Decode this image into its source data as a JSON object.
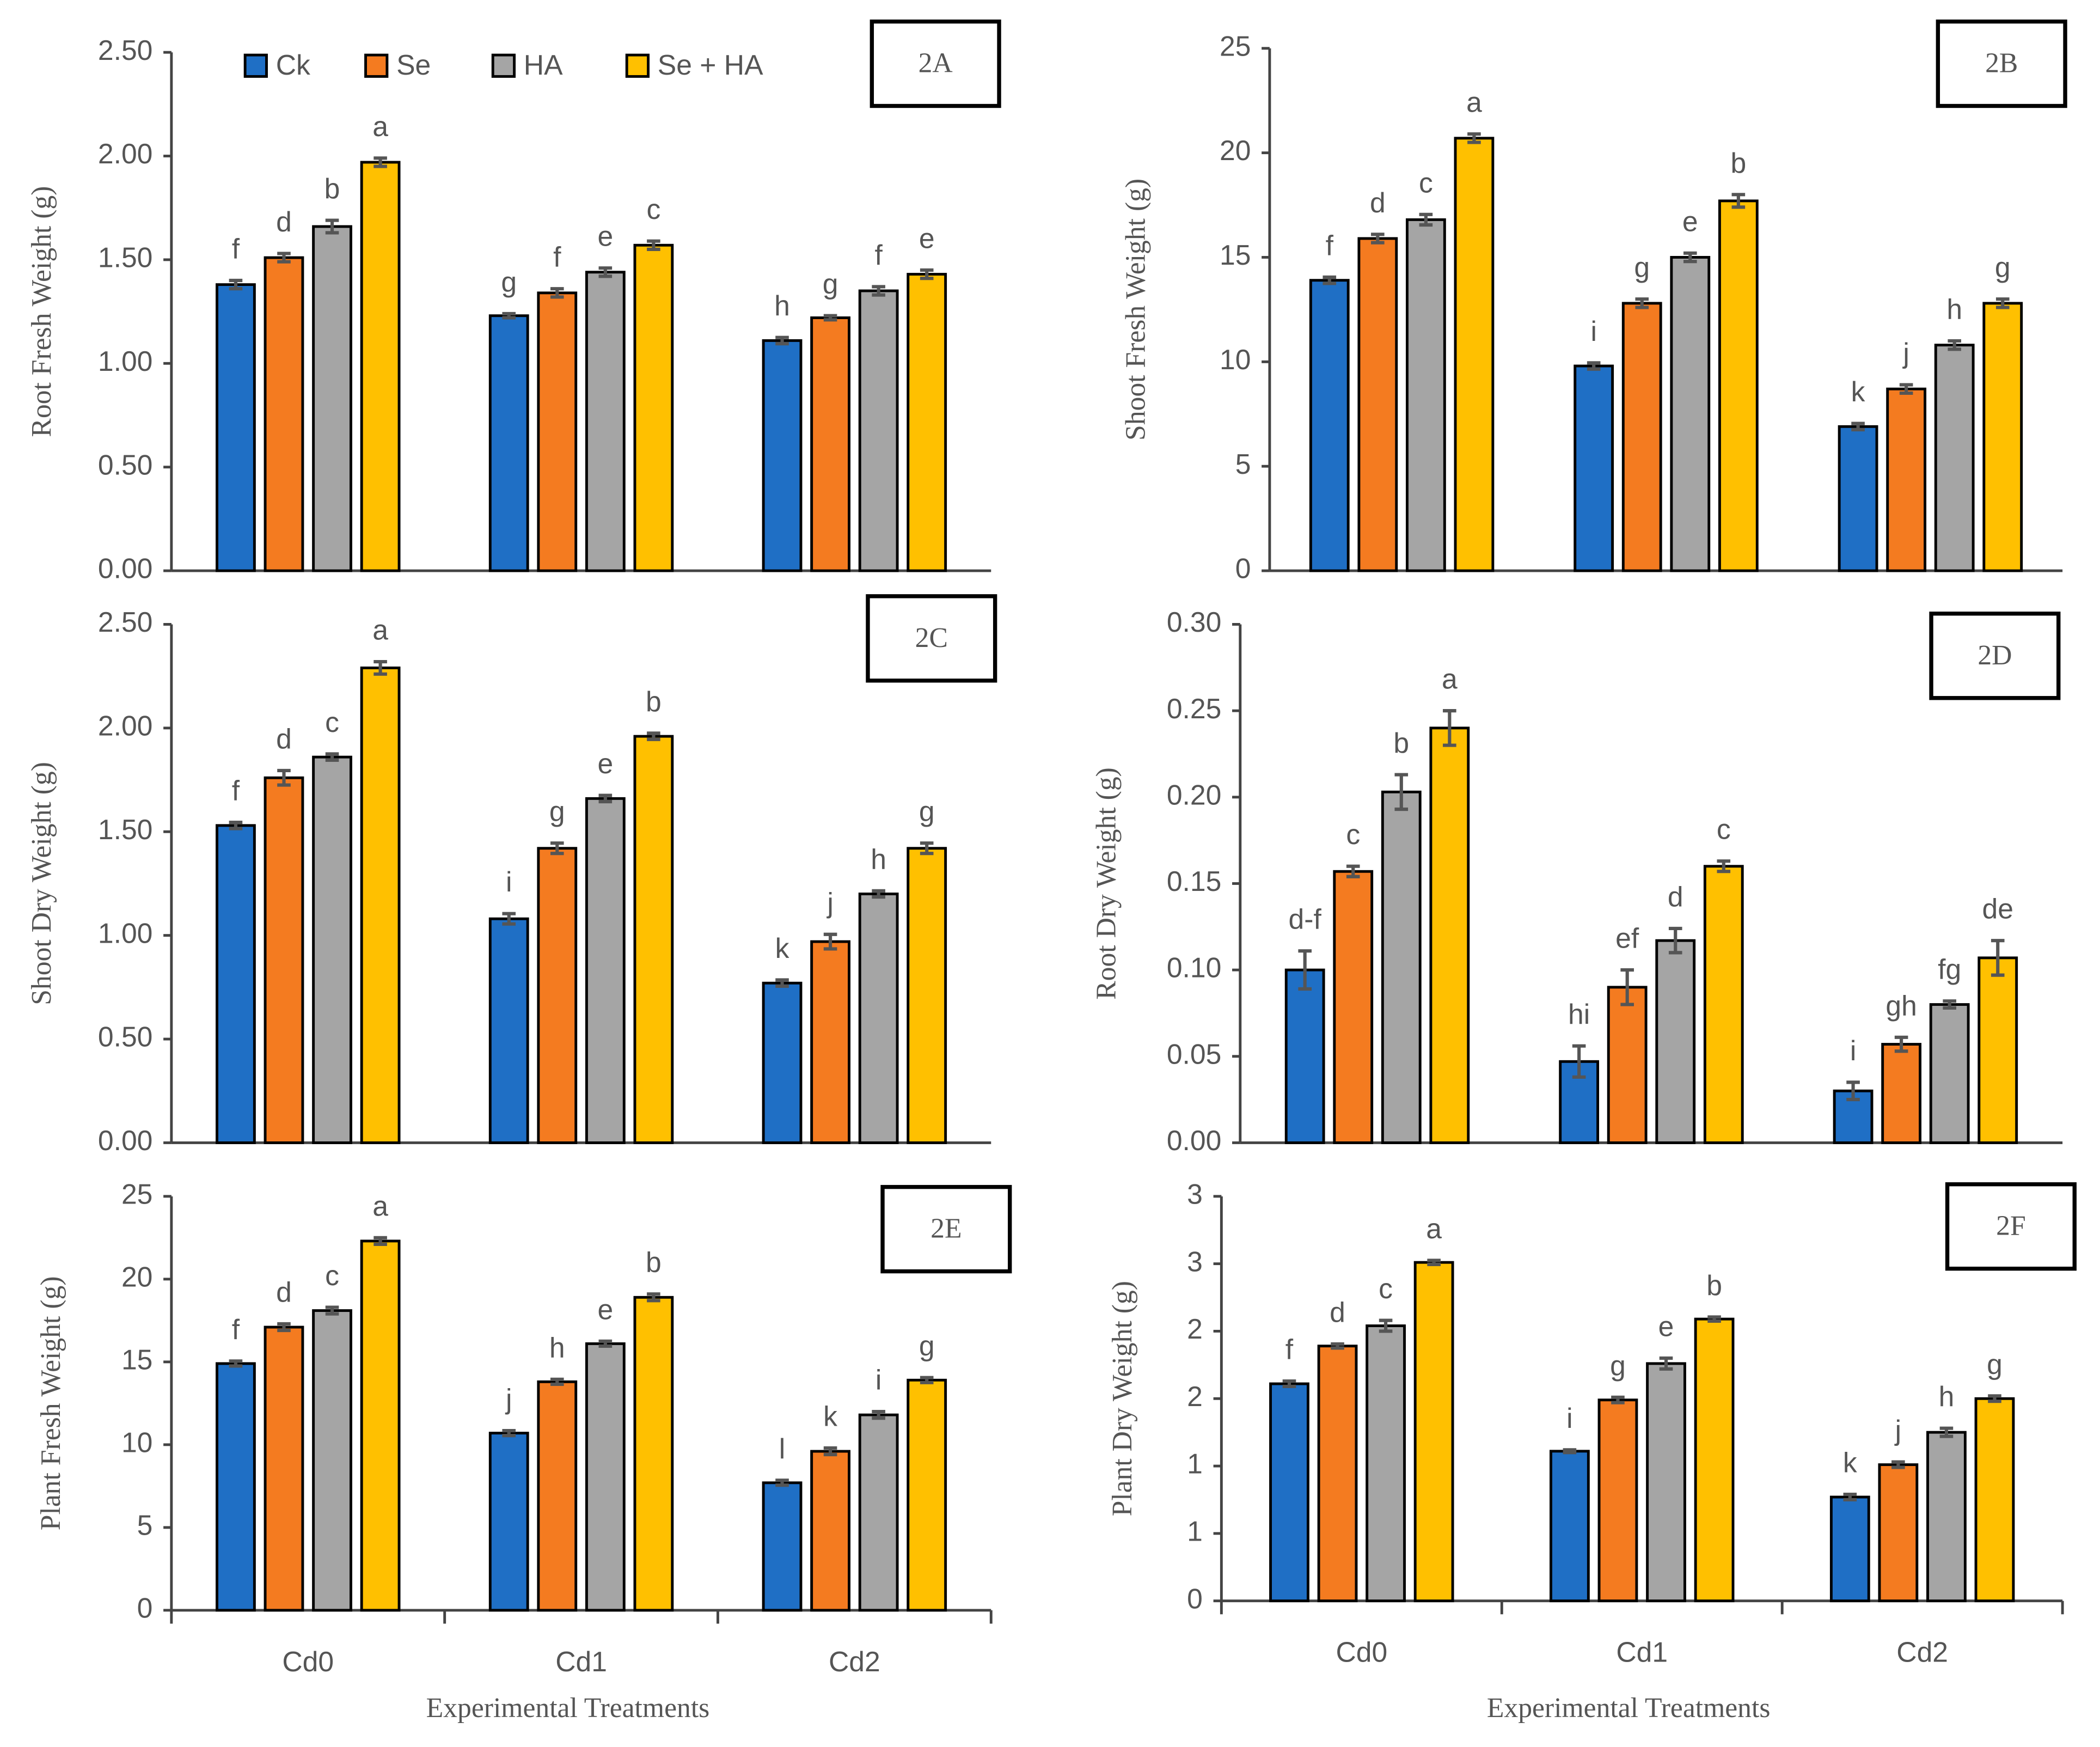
{
  "chart_data": [
    {
      "type": "bar",
      "title": "2A",
      "ylabel": "Root Fresh Weight (g)",
      "ylim": [
        0,
        2.5
      ],
      "yticks": [
        {
          "value": 0,
          "label": "0.00"
        },
        {
          "value": 0.5,
          "label": "0.50"
        },
        {
          "value": 1,
          "label": "1.00"
        },
        {
          "value": 1.5,
          "label": "1.50"
        },
        {
          "value": 2,
          "label": "2.00"
        },
        {
          "value": 2.5,
          "label": "2.50"
        }
      ],
      "legend": "top-left",
      "series": [
        {
          "name": "Ck",
          "color": "#1f6fc5",
          "values": [
            1.38,
            1.23,
            1.11
          ],
          "errors": [
            0.02,
            0.01,
            0.015
          ],
          "letters": [
            "f",
            "g",
            "h"
          ]
        },
        {
          "name": "Se",
          "color": "#f47b20",
          "values": [
            1.51,
            1.34,
            1.22
          ],
          "errors": [
            0.02,
            0.02,
            0.01
          ],
          "letters": [
            "d",
            "f",
            "g"
          ]
        },
        {
          "name": "HA",
          "color": "#a5a5a5",
          "values": [
            1.66,
            1.44,
            1.35
          ],
          "errors": [
            0.03,
            0.02,
            0.02
          ],
          "letters": [
            "b",
            "e",
            "f"
          ]
        },
        {
          "name": "Se + HA",
          "color": "#ffc000",
          "values": [
            1.97,
            1.57,
            1.43
          ],
          "errors": [
            0.02,
            0.02,
            0.02
          ],
          "letters": [
            "a",
            "c",
            "e"
          ]
        }
      ]
    },
    {
      "type": "bar",
      "title": "2B",
      "ylabel": "Shoot Fresh Weight (g)",
      "ylim": [
        0,
        25
      ],
      "yticks": [
        0,
        5,
        10,
        15,
        20,
        25
      ],
      "series": [
        {
          "color": "#1f6fc5",
          "values": [
            13.9,
            9.8,
            6.9
          ],
          "errors": [
            0.15,
            0.15,
            0.15
          ],
          "letters": [
            "f",
            "i",
            "k"
          ]
        },
        {
          "color": "#f47b20",
          "values": [
            15.9,
            12.8,
            8.7
          ],
          "errors": [
            0.2,
            0.2,
            0.2
          ],
          "letters": [
            "d",
            "g",
            "j"
          ]
        },
        {
          "color": "#a5a5a5",
          "values": [
            16.8,
            15.0,
            10.8
          ],
          "errors": [
            0.25,
            0.2,
            0.2
          ],
          "letters": [
            "c",
            "e",
            "h"
          ]
        },
        {
          "color": "#ffc000",
          "values": [
            20.7,
            17.7,
            12.8
          ],
          "errors": [
            0.2,
            0.3,
            0.2
          ],
          "letters": [
            "a",
            "b",
            "g"
          ]
        }
      ]
    },
    {
      "type": "bar",
      "title": "2C",
      "ylabel": "Shoot Dry Weight (g)",
      "ylim": [
        0,
        2.5
      ],
      "yticks": [
        {
          "value": 0,
          "label": "0.00"
        },
        {
          "value": 0.5,
          "label": "0.50"
        },
        {
          "value": 1,
          "label": "1.00"
        },
        {
          "value": 1.5,
          "label": "1.50"
        },
        {
          "value": 2,
          "label": "2.00"
        },
        {
          "value": 2.5,
          "label": "2.50"
        }
      ],
      "series": [
        {
          "color": "#1f6fc5",
          "values": [
            1.53,
            1.08,
            0.77
          ],
          "errors": [
            0.015,
            0.025,
            0.015
          ],
          "letters": [
            "f",
            "i",
            "k"
          ]
        },
        {
          "color": "#f47b20",
          "values": [
            1.76,
            1.42,
            0.97
          ],
          "errors": [
            0.035,
            0.025,
            0.035
          ],
          "letters": [
            "d",
            "g",
            "j"
          ]
        },
        {
          "color": "#a5a5a5",
          "values": [
            1.86,
            1.66,
            1.2
          ],
          "errors": [
            0.015,
            0.015,
            0.015
          ],
          "letters": [
            "c",
            "e",
            "h"
          ]
        },
        {
          "color": "#ffc000",
          "values": [
            2.29,
            1.96,
            1.42
          ],
          "errors": [
            0.03,
            0.015,
            0.025
          ],
          "letters": [
            "a",
            "b",
            "g"
          ]
        }
      ]
    },
    {
      "type": "bar",
      "title": "2D",
      "ylabel": "Root Dry Weight (g)",
      "ylim": [
        0,
        0.3
      ],
      "yticks": [
        {
          "value": 0,
          "label": "0.00"
        },
        {
          "value": 0.05,
          "label": "0.05"
        },
        {
          "value": 0.1,
          "label": "0.10"
        },
        {
          "value": 0.15,
          "label": "0.15"
        },
        {
          "value": 0.2,
          "label": "0.20"
        },
        {
          "value": 0.25,
          "label": "0.25"
        },
        {
          "value": 0.3,
          "label": "0.30"
        }
      ],
      "series": [
        {
          "color": "#1f6fc5",
          "values": [
            0.1,
            0.047,
            0.03
          ],
          "errors": [
            0.011,
            0.009,
            0.005
          ],
          "letters": [
            "d-f",
            "hi",
            "i"
          ]
        },
        {
          "color": "#f47b20",
          "values": [
            0.157,
            0.09,
            0.057
          ],
          "errors": [
            0.003,
            0.01,
            0.004
          ],
          "letters": [
            "c",
            "ef",
            "gh"
          ]
        },
        {
          "color": "#a5a5a5",
          "values": [
            0.203,
            0.117,
            0.08
          ],
          "errors": [
            0.01,
            0.007,
            0.002
          ],
          "letters": [
            "b",
            "d",
            "fg"
          ]
        },
        {
          "color": "#ffc000",
          "values": [
            0.24,
            0.16,
            0.107
          ],
          "errors": [
            0.01,
            0.003,
            0.01
          ],
          "letters": [
            "a",
            "c",
            "de"
          ]
        }
      ]
    },
    {
      "type": "bar",
      "title": "2E",
      "ylabel": "Plant Fresh Weight (g)",
      "xlabel": "Experimental Treatments",
      "categories": [
        "Cd0",
        "Cd1",
        "Cd2"
      ],
      "ylim": [
        0,
        25
      ],
      "yticks": [
        0,
        5,
        10,
        15,
        20,
        25
      ],
      "series": [
        {
          "color": "#1f6fc5",
          "values": [
            14.9,
            10.7,
            7.7
          ],
          "errors": [
            0.15,
            0.15,
            0.15
          ],
          "letters": [
            "f",
            "j",
            "l"
          ]
        },
        {
          "color": "#f47b20",
          "values": [
            17.1,
            13.8,
            9.6
          ],
          "errors": [
            0.2,
            0.15,
            0.2
          ],
          "letters": [
            "d",
            "h",
            "k"
          ]
        },
        {
          "color": "#a5a5a5",
          "values": [
            18.1,
            16.1,
            11.8
          ],
          "errors": [
            0.2,
            0.15,
            0.2
          ],
          "letters": [
            "c",
            "e",
            "i"
          ]
        },
        {
          "color": "#ffc000",
          "values": [
            22.3,
            18.9,
            13.9
          ],
          "errors": [
            0.2,
            0.2,
            0.15
          ],
          "letters": [
            "a",
            "b",
            "g"
          ]
        }
      ]
    },
    {
      "type": "bar",
      "title": "2F",
      "ylabel": "Plant Dry Weight (g)",
      "xlabel": "Experimental Treatments",
      "categories": [
        "Cd0",
        "Cd1",
        "Cd2"
      ],
      "ylim": [
        0,
        3
      ],
      "yticks": [
        0,
        {
          "value": 0.5,
          "label": "1"
        },
        1,
        {
          "value": 1.5,
          "label": "2"
        },
        2,
        {
          "value": 2.5,
          "label": "3"
        },
        3
      ],
      "series": [
        {
          "color": "#1f6fc5",
          "values": [
            1.61,
            1.11,
            0.77
          ],
          "errors": [
            0.02,
            0.01,
            0.02
          ],
          "letters": [
            "f",
            "i",
            "k"
          ]
        },
        {
          "color": "#f47b20",
          "values": [
            1.89,
            1.49,
            1.01
          ],
          "errors": [
            0.015,
            0.02,
            0.02
          ],
          "letters": [
            "d",
            "g",
            "j"
          ]
        },
        {
          "color": "#a5a5a5",
          "values": [
            2.04,
            1.76,
            1.25
          ],
          "errors": [
            0.04,
            0.04,
            0.03
          ],
          "letters": [
            "c",
            "e",
            "h"
          ]
        },
        {
          "color": "#ffc000",
          "values": [
            2.51,
            2.09,
            1.5
          ],
          "errors": [
            0.015,
            0.015,
            0.02
          ],
          "letters": [
            "a",
            "b",
            "g"
          ]
        }
      ]
    }
  ]
}
